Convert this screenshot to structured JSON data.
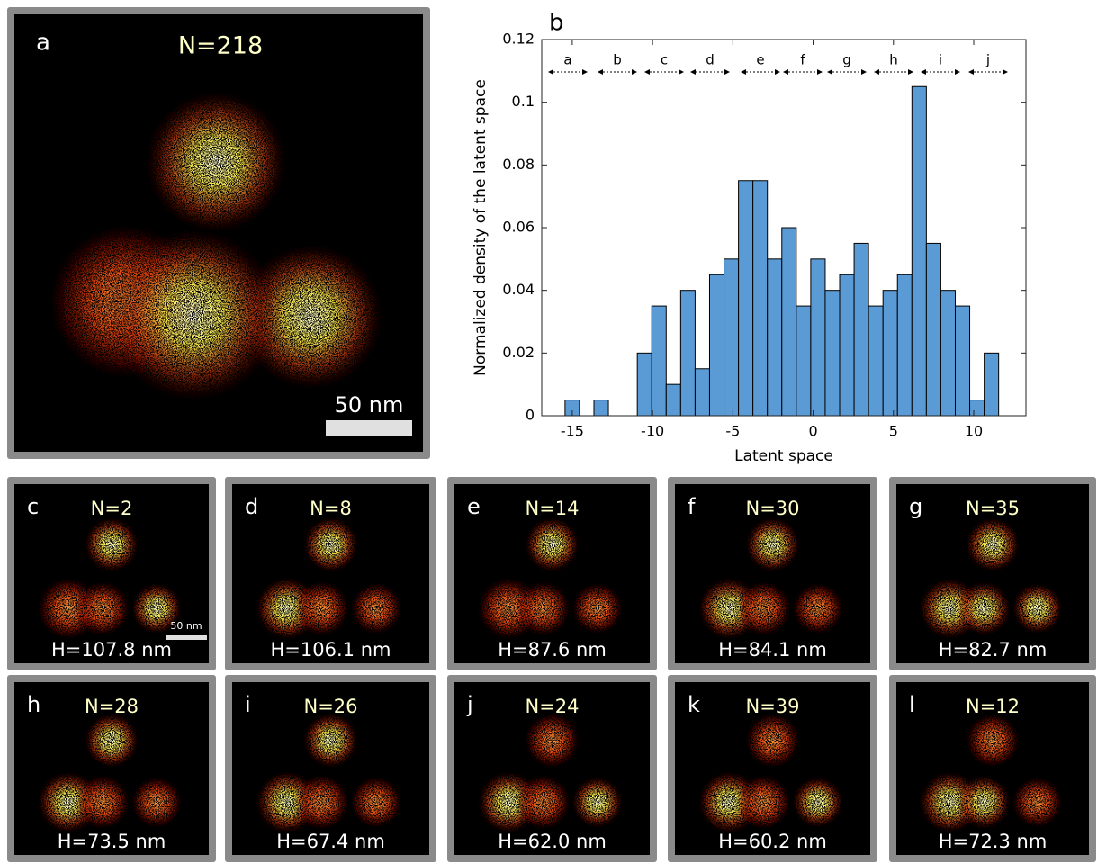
{
  "chart_data": {
    "type": "histogram",
    "panel_label": "b",
    "x_label": "Latent space",
    "y_label": "Normalized density of the latent space",
    "bins": [
      -15.45,
      -14.55,
      -13.65,
      -12.75,
      -11.85,
      -10.95,
      -10.05,
      -9.15,
      -8.25,
      -7.35,
      -6.45,
      -5.55,
      -4.65,
      -3.75,
      -2.85,
      -1.95,
      -1.05,
      -0.15,
      0.75,
      1.65,
      2.55,
      3.45,
      4.35,
      5.25,
      6.15,
      7.05,
      7.95,
      8.85,
      9.75,
      10.65,
      11.55
    ],
    "values": [
      0.005,
      0,
      0.005,
      0,
      0,
      0.02,
      0.035,
      0.01,
      0.04,
      0.015,
      0.045,
      0.05,
      0.075,
      0.075,
      0.05,
      0.06,
      0.035,
      0.05,
      0.04,
      0.045,
      0.055,
      0.035,
      0.04,
      0.045,
      0.105,
      0.055,
      0.04,
      0.035,
      0.005,
      0.02
    ],
    "color": "#5b9bd5",
    "xlim": [
      -16.9,
      13.25
    ],
    "xticks": [
      -15,
      -10,
      -5,
      0,
      5,
      10
    ],
    "ylim": [
      0,
      0.12
    ],
    "yticks": [
      0,
      0.02,
      0.04,
      0.06,
      0.08,
      0.1,
      0.12
    ],
    "regions": [
      "a",
      "b",
      "c",
      "d",
      "e",
      "f",
      "g",
      "h",
      "i",
      "j"
    ]
  },
  "main_panel": {
    "letter": "a",
    "count": "N=218",
    "scale_bar": "50 nm"
  },
  "panels": [
    {
      "letter": "c",
      "count": "N=2",
      "height": "H=107.8 nm",
      "scale_bar": "50 nm"
    },
    {
      "letter": "d",
      "count": "N=8",
      "height": "H=106.1 nm"
    },
    {
      "letter": "e",
      "count": "N=14",
      "height": "H=87.6 nm"
    },
    {
      "letter": "f",
      "count": "N=30",
      "height": "H=84.1 nm"
    },
    {
      "letter": "g",
      "count": "N=35",
      "height": "H=82.7 nm"
    },
    {
      "letter": "h",
      "count": "N=28",
      "height": "H=73.5 nm"
    },
    {
      "letter": "i",
      "count": "N=26",
      "height": "H=67.4 nm"
    },
    {
      "letter": "j",
      "count": "N=24",
      "height": "H=62.0 nm"
    },
    {
      "letter": "k",
      "count": "N=39",
      "height": "H=60.2 nm"
    },
    {
      "letter": "l",
      "count": "N=12",
      "height": "H=72.3 nm"
    }
  ]
}
